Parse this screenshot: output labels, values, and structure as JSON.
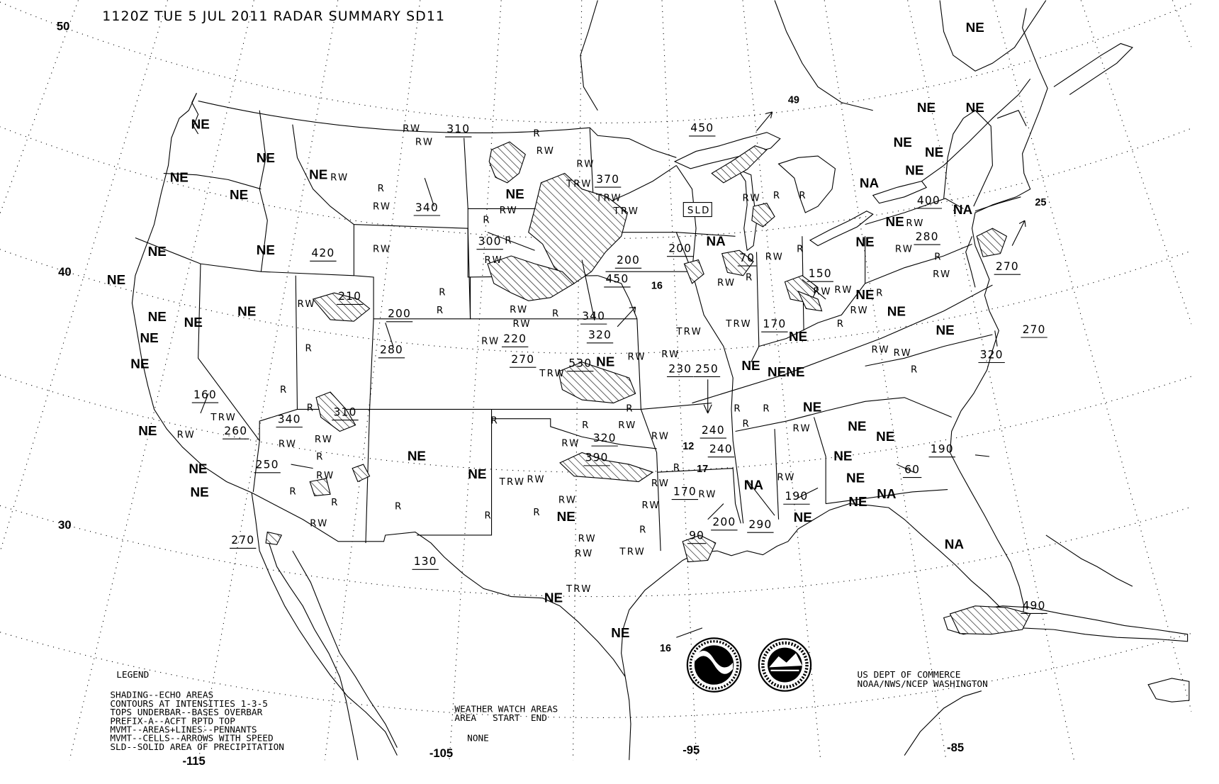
{
  "title": "1120Z TUE  5 JUL 2011 RADAR SUMMARY SD11",
  "latitude_labels": [
    "50",
    "40",
    "30"
  ],
  "longitude_labels": [
    "-115",
    "-105",
    "-95",
    "-85"
  ],
  "legend": {
    "heading": "LEGEND",
    "lines": [
      "SHADING--ECHO AREAS",
      "CONTOURS AT INTENSITIES 1-3-5",
      "TOPS UNDERBAR--BASES OVERBAR",
      "PREFIX-A--ACFT RPTD TOP",
      "MVMT--AREAS+LINES--PENNANTS",
      "MVMT--CELLS--ARROWS WITH SPEED",
      "SLD--SOLID AREA OF PRECIPITATION"
    ]
  },
  "watch": {
    "heading": "WEATHER WATCH AREAS",
    "columns": "AREA   START  END",
    "value": "NONE"
  },
  "credit": [
    "US DEPT OF COMMERCE",
    "NOAA/NWS/NCEP WASHINGTON"
  ],
  "map_labels": {
    "sld": "SLD",
    "region_codes": [
      "NE",
      "NE",
      "NE",
      "NE",
      "NE",
      "NE",
      "NA",
      "NA",
      "NE",
      "NE",
      "NA",
      "NE",
      "NE",
      "NE",
      "NE",
      "NE",
      "NE",
      "NE",
      "NE",
      "NE",
      "NE",
      "NE",
      "NE",
      "NE",
      "NE",
      "NE",
      "NE",
      "NE",
      "NE",
      "NE",
      "NE",
      "NE",
      "NE",
      "NE",
      "NE",
      "NENE",
      "NE",
      "NE",
      "NE",
      "NE",
      "NE",
      "NE",
      "NE",
      "NE",
      "NE",
      "NE",
      "NE",
      "NA",
      "NA",
      "NA",
      "NA"
    ],
    "precip_types": [
      "RW",
      "RW",
      "R",
      "RW",
      "RW",
      "TRW",
      "TRW",
      "TRW",
      "RW",
      "R",
      "RW",
      "R",
      "RW",
      "RW",
      "R",
      "RW",
      "R",
      "R",
      "RW",
      "R",
      "RW",
      "RW",
      "RW",
      "R",
      "R",
      "R",
      "RW",
      "RW",
      "R",
      "RW",
      "R",
      "RW",
      "R",
      "R",
      "RW",
      "TRW",
      "TRW",
      "RW",
      "R",
      "RW",
      "R",
      "RW",
      "TRW",
      "RW",
      "R",
      "R",
      "RW",
      "R",
      "RW",
      "R",
      "RW",
      "RW",
      "TRW",
      "TRW",
      "RW",
      "RW",
      "TRW",
      "RW",
      "R",
      "RW",
      "RW",
      "R",
      "R",
      "R",
      "R",
      "RW",
      "RW",
      "R",
      "RW",
      "RW",
      "RW",
      "R",
      "R",
      "RW",
      "RW",
      "R",
      "R",
      "RW",
      "R",
      "RW",
      "RW",
      "TRW",
      "RW",
      "R",
      "RW"
    ],
    "echo_tops": [
      "310",
      "340",
      "450",
      "370",
      "420",
      "300",
      "200",
      "450",
      "200",
      "70",
      "210",
      "200",
      "280",
      "340",
      "320",
      "220",
      "270",
      "150",
      "170",
      "270",
      "400",
      "280",
      "270",
      "320",
      "160",
      "340",
      "310",
      "260",
      "250",
      "270",
      "130",
      "530",
      "230",
      "250",
      "320",
      "390",
      "240",
      "240",
      "170",
      "200",
      "290",
      "190",
      "190",
      "60",
      "90",
      "490"
    ],
    "cell_speeds": [
      "49",
      "25",
      "16",
      "12",
      "16",
      "17"
    ]
  },
  "colors": {
    "ink": "#000000",
    "background": "#ffffff"
  },
  "logos": [
    "noaa-seal",
    "nws-seal"
  ]
}
